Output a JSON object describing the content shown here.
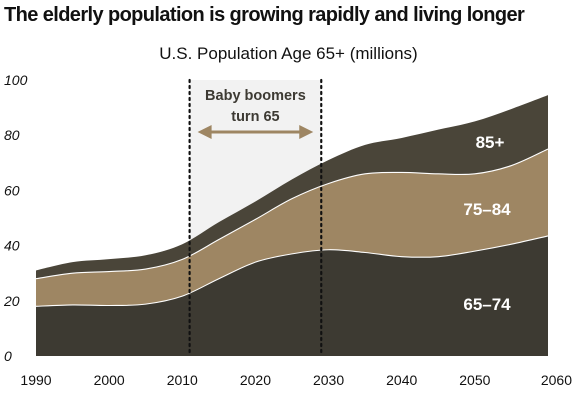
{
  "colors": {
    "age_65_74": "#3d3a32",
    "age_75_84": "#9e8663",
    "age_85_plus": "#4a4539",
    "highlight": "#f2f2f2",
    "arrow": "#9e8663",
    "boundary": "#ffffff"
  },
  "chart_data": {
    "type": "area",
    "stacked": true,
    "title": "The elderly population is growing rapidly and living longer",
    "subtitle": "U.S. Population Age 65+ (millions)",
    "x": [
      1990,
      1995,
      2000,
      2005,
      2010,
      2015,
      2020,
      2025,
      2030,
      2035,
      2040,
      2045,
      2050,
      2055,
      2060
    ],
    "series": [
      {
        "name": "65–74",
        "values": [
          18.0,
          18.5,
          18.3,
          18.8,
          21.7,
          28.0,
          34.0,
          37.0,
          38.5,
          37.5,
          36.0,
          36.0,
          38.0,
          40.5,
          43.5
        ]
      },
      {
        "name": "75–84",
        "values": [
          10.0,
          11.5,
          12.3,
          12.7,
          13.3,
          14.2,
          15.5,
          20.0,
          24.0,
          28.5,
          30.5,
          30.0,
          28.0,
          28.5,
          31.5
        ]
      },
      {
        "name": "85+",
        "values": [
          3.0,
          4.0,
          4.5,
          5.0,
          5.5,
          6.3,
          6.5,
          7.0,
          8.5,
          10.5,
          12.5,
          16.0,
          19.0,
          20.5,
          19.5
        ]
      }
    ],
    "area_labels": [
      "65–74",
      "75–84",
      "85+"
    ],
    "x_ticks": [
      1990,
      2000,
      2010,
      2020,
      2030,
      2040,
      2050,
      2060
    ],
    "y_ticks": [
      0,
      20,
      40,
      60,
      80,
      100
    ],
    "xlim": [
      1990,
      2060
    ],
    "ylim": [
      0,
      100
    ],
    "grid": false,
    "legend": "none",
    "annotation": {
      "line1": "Baby boomers",
      "line2": "turn 65",
      "x_start": 2011,
      "x_end": 2029
    }
  }
}
